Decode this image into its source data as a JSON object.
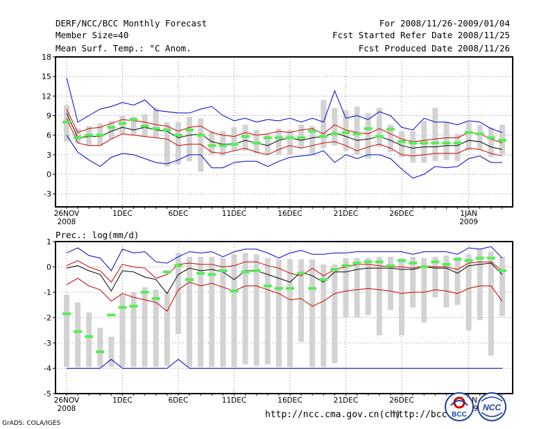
{
  "header": {
    "title": "DERF/NCC/BCC Monthly Forecast",
    "member_size": "Member Size=40",
    "variable": "Mean Surf. Temp.: °C Anom.",
    "period": "For 2008/11/26-2009/01/04",
    "started": "Fcst Started Refer Date 2008/11/25",
    "produced": "Fcst Produced Date 2008/11/26"
  },
  "footer": {
    "url1": "http://ncc.cma.gov.cn(ch)",
    "url2": "http://bcc.",
    "logo1": "BCC",
    "logo2": "NCC",
    "grads": "GrADS: COLA/IGES"
  },
  "colors": {
    "envelope": "#0000cc",
    "spread": "#cc0000",
    "mean": "#000000",
    "box": "#d3d3d3",
    "median": "#55ee55"
  },
  "chart_data": [
    {
      "type": "box-plot with lines",
      "title": "Mean Surf. Temp.: °C Anom.",
      "ylabel": "°C Anom.",
      "ylim": [
        -5,
        18
      ],
      "yticks": [
        -3,
        0,
        3,
        6,
        9,
        12,
        15,
        18
      ],
      "xtick_labels": [
        {
          "day": 0,
          "label": "26NOV",
          "sub": "2008"
        },
        {
          "day": 5,
          "label": "1DEC"
        },
        {
          "day": 10,
          "label": "6DEC"
        },
        {
          "day": 15,
          "label": "11DEC"
        },
        {
          "day": 20,
          "label": "16DEC"
        },
        {
          "day": 25,
          "label": "21DEC"
        },
        {
          "day": 30,
          "label": "26DEC"
        },
        {
          "day": 36,
          "label": "1JAN",
          "sub": "2009"
        }
      ],
      "days": [
        0,
        1,
        2,
        3,
        4,
        5,
        6,
        7,
        8,
        9,
        10,
        11,
        12,
        13,
        14,
        15,
        16,
        17,
        18,
        19,
        20,
        21,
        22,
        23,
        24,
        25,
        26,
        27,
        28,
        29,
        30,
        31,
        32,
        33,
        34,
        35,
        36,
        37,
        38,
        39
      ],
      "series": [
        {
          "name": "max",
          "values": [
            14.8,
            8.0,
            9.0,
            10.0,
            10.4,
            11.0,
            10.6,
            11.4,
            9.8,
            9.6,
            9.4,
            9.4,
            10.0,
            10.4,
            9.0,
            8.2,
            8.6,
            8.0,
            8.4,
            8.2,
            8.6,
            8.0,
            8.6,
            8.0,
            12.8,
            8.6,
            9.0,
            8.4,
            9.6,
            9.0,
            7.2,
            6.8,
            8.6,
            8.0,
            8.0,
            7.6,
            8.2,
            8.0,
            7.0,
            6.4
          ]
        },
        {
          "name": "upper",
          "values": [
            10.0,
            6.4,
            7.0,
            7.2,
            7.8,
            8.4,
            8.2,
            8.0,
            7.6,
            7.4,
            6.6,
            7.2,
            7.4,
            6.4,
            6.0,
            5.8,
            6.4,
            6.0,
            6.2,
            6.6,
            6.4,
            6.8,
            7.0,
            6.2,
            7.6,
            6.8,
            6.4,
            6.2,
            7.0,
            6.2,
            5.4,
            5.0,
            5.2,
            5.4,
            5.6,
            5.6,
            6.4,
            6.2,
            5.4,
            4.8
          ]
        },
        {
          "name": "mean",
          "values": [
            9.4,
            5.6,
            5.8,
            5.8,
            6.6,
            7.2,
            6.8,
            7.2,
            6.8,
            6.6,
            5.6,
            6.0,
            6.2,
            5.0,
            4.6,
            4.6,
            5.2,
            4.8,
            4.4,
            5.2,
            5.6,
            5.2,
            5.6,
            5.8,
            6.4,
            5.8,
            5.2,
            5.4,
            5.8,
            5.2,
            4.4,
            4.0,
            4.2,
            4.2,
            4.4,
            4.4,
            5.2,
            5.0,
            4.2,
            3.8
          ]
        },
        {
          "name": "lower",
          "values": [
            8.6,
            4.8,
            4.4,
            4.4,
            5.4,
            6.2,
            6.0,
            5.8,
            5.6,
            5.4,
            4.4,
            4.6,
            4.6,
            3.4,
            3.2,
            3.6,
            4.0,
            3.4,
            3.0,
            3.8,
            4.4,
            4.0,
            4.4,
            4.8,
            5.0,
            4.4,
            3.6,
            4.2,
            4.6,
            4.0,
            3.0,
            2.8,
            3.0,
            3.2,
            3.2,
            3.2,
            4.0,
            3.8,
            3.2,
            2.8
          ]
        },
        {
          "name": "min",
          "values": [
            6.0,
            3.4,
            2.2,
            1.2,
            2.6,
            3.2,
            3.0,
            2.4,
            1.8,
            1.6,
            2.2,
            3.0,
            3.0,
            1.0,
            1.0,
            1.8,
            2.0,
            2.0,
            1.2,
            2.0,
            2.6,
            2.8,
            3.0,
            3.6,
            1.8,
            3.0,
            2.4,
            3.0,
            3.0,
            2.4,
            0.8,
            -0.6,
            0.0,
            1.2,
            1.0,
            1.2,
            2.4,
            2.8,
            1.8,
            1.8
          ]
        }
      ],
      "box_low": [
        5.0,
        4.8,
        4.4,
        4.4,
        5.4,
        6.2,
        6.0,
        5.8,
        5.6,
        1.2,
        1.5,
        2.0,
        0.4,
        3.0,
        2.8,
        3.6,
        3.6,
        3.2,
        3.0,
        3.0,
        3.0,
        4.0,
        3.0,
        4.0,
        4.4,
        3.6,
        3.0,
        2.4,
        4.2,
        3.4,
        2.6,
        1.8,
        1.8,
        2.0,
        2.2,
        2.0,
        3.6,
        3.8,
        2.6,
        3.0
      ],
      "box_high": [
        10.6,
        7.0,
        7.4,
        7.8,
        8.2,
        9.0,
        8.8,
        9.2,
        10.2,
        8.0,
        8.0,
        8.8,
        8.6,
        6.6,
        6.6,
        7.2,
        7.6,
        6.8,
        6.2,
        7.0,
        6.8,
        7.6,
        7.4,
        11.4,
        10.2,
        9.8,
        10.4,
        9.4,
        10.2,
        7.6,
        6.6,
        6.6,
        8.2,
        10.2,
        8.0,
        6.2,
        8.0,
        7.6,
        7.2,
        7.6
      ],
      "median": [
        8.0,
        5.6,
        6.0,
        6.0,
        7.2,
        7.8,
        8.4,
        7.4,
        7.0,
        6.8,
        6.0,
        6.8,
        6.0,
        4.4,
        4.4,
        4.6,
        5.8,
        4.8,
        5.6,
        5.6,
        5.6,
        5.6,
        6.6,
        5.8,
        6.2,
        6.4,
        6.2,
        7.0,
        5.8,
        6.9,
        5.0,
        4.8,
        4.8,
        4.8,
        4.8,
        4.8,
        6.4,
        6.2,
        5.6,
        5.2
      ]
    },
    {
      "type": "box-plot with lines",
      "title": "Prec.: log(mm/d)",
      "ylabel": "log(mm/d)",
      "ylim": [
        -5,
        1
      ],
      "yticks": [
        -5,
        -4,
        -3,
        -2,
        -1,
        0,
        1
      ],
      "xtick_labels": [
        {
          "day": 0,
          "label": "26NOV",
          "sub": "2008"
        },
        {
          "day": 5,
          "label": "1DEC"
        },
        {
          "day": 10,
          "label": "6DEC"
        },
        {
          "day": 15,
          "label": "11DEC"
        },
        {
          "day": 20,
          "label": "16DEC"
        },
        {
          "day": 25,
          "label": "21DEC"
        },
        {
          "day": 30,
          "label": "26DEC"
        },
        {
          "day": 36,
          "label": "1JAN",
          "sub": "2009"
        }
      ],
      "days": [
        0,
        1,
        2,
        3,
        4,
        5,
        6,
        7,
        8,
        9,
        10,
        11,
        12,
        13,
        14,
        15,
        16,
        17,
        18,
        19,
        20,
        21,
        22,
        23,
        24,
        25,
        26,
        27,
        28,
        29,
        30,
        31,
        32,
        33,
        34,
        35,
        36,
        37,
        38,
        39
      ],
      "series": [
        {
          "name": "max",
          "values": [
            0.55,
            0.75,
            0.45,
            0.35,
            -0.15,
            0.7,
            0.55,
            0.6,
            0.2,
            0.15,
            0.4,
            0.6,
            0.55,
            0.6,
            0.4,
            0.6,
            0.7,
            0.7,
            0.55,
            0.35,
            0.55,
            0.65,
            0.5,
            0.5,
            0.55,
            0.55,
            0.6,
            0.6,
            0.6,
            0.6,
            0.6,
            0.5,
            0.6,
            0.6,
            0.6,
            0.5,
            0.75,
            0.7,
            0.8,
            0.35
          ]
        },
        {
          "name": "upper",
          "values": [
            0.05,
            0.25,
            0.0,
            -0.15,
            -0.6,
            0.1,
            0.0,
            -0.05,
            -0.45,
            -0.3,
            0.1,
            0.15,
            0.1,
            0.1,
            0.0,
            0.05,
            0.2,
            0.2,
            0.05,
            -0.05,
            -0.25,
            -0.35,
            -0.05,
            -0.35,
            -0.1,
            0.0,
            0.1,
            0.1,
            0.05,
            0.0,
            0.0,
            -0.05,
            0.05,
            0.0,
            0.0,
            -0.1,
            0.15,
            0.2,
            0.2,
            -0.15
          ]
        },
        {
          "name": "mean",
          "values": [
            -0.05,
            0.05,
            -0.15,
            -0.3,
            -0.95,
            -0.15,
            -0.2,
            -0.4,
            -0.5,
            -1.05,
            -0.3,
            -0.05,
            -0.15,
            -0.1,
            -0.2,
            -0.5,
            -0.15,
            -0.15,
            -0.3,
            -0.45,
            -0.6,
            -0.2,
            -0.35,
            -0.6,
            -0.2,
            -0.2,
            -0.1,
            -0.05,
            -0.05,
            -0.05,
            -0.1,
            -0.1,
            0.0,
            -0.05,
            -0.05,
            -0.25,
            0.05,
            0.1,
            0.15,
            -0.3
          ]
        },
        {
          "name": "lower",
          "values": [
            -0.7,
            -0.45,
            -0.75,
            -0.9,
            -1.35,
            -1.05,
            -1.2,
            -1.3,
            -1.4,
            -1.75,
            -0.9,
            -0.6,
            -0.75,
            -0.65,
            -0.8,
            -0.95,
            -0.75,
            -0.75,
            -0.9,
            -1.05,
            -1.3,
            -1.25,
            -1.55,
            -1.35,
            -1.05,
            -0.95,
            -0.9,
            -0.85,
            -0.9,
            -0.95,
            -1.05,
            -1.0,
            -1.0,
            -0.9,
            -0.95,
            -1.05,
            -0.85,
            -0.75,
            -0.75,
            -1.35
          ]
        },
        {
          "name": "min",
          "values": [
            -4.0,
            -4.0,
            -4.0,
            -4.0,
            -3.65,
            -4.0,
            -4.0,
            -4.0,
            -4.0,
            -4.0,
            -3.65,
            -4.0,
            -4.0,
            -4.0,
            -4.0,
            -4.0,
            -4.0,
            -4.0,
            -4.0,
            -4.0,
            -4.0,
            -4.0,
            -4.0,
            -4.0,
            -4.0,
            -4.0,
            -4.0,
            -4.0,
            -4.0,
            -4.0,
            -4.0,
            -4.0,
            -4.0,
            -4.0,
            -4.0,
            -4.0,
            -4.0,
            -4.0,
            -4.0,
            -4.0
          ]
        }
      ],
      "box_low": [
        -3.95,
        -3.95,
        -3.95,
        -3.95,
        -3.95,
        -3.95,
        -3.95,
        -3.95,
        -3.95,
        -3.9,
        -2.65,
        -3.95,
        -3.95,
        -3.95,
        -3.95,
        -3.95,
        -3.85,
        -3.9,
        -3.85,
        -3.95,
        -3.95,
        -2.95,
        -3.95,
        -3.95,
        -3.8,
        -2.0,
        -2.0,
        -1.9,
        -2.7,
        -1.7,
        -2.7,
        -1.6,
        -2.2,
        -1.2,
        -1.6,
        -1.5,
        -2.5,
        -2.1,
        -3.5,
        -1.95
      ],
      "box_high": [
        -1.1,
        -1.4,
        -1.8,
        -2.4,
        -2.75,
        -1.1,
        -1.0,
        -0.8,
        -0.9,
        -1.0,
        0.55,
        0.4,
        0.4,
        0.4,
        0.35,
        0.5,
        0.55,
        0.5,
        0.35,
        0.3,
        0.3,
        0.3,
        0.3,
        0.1,
        0.1,
        0.35,
        0.35,
        0.35,
        0.4,
        0.4,
        0.35,
        0.4,
        0.35,
        0.4,
        0.45,
        0.4,
        0.5,
        0.7,
        0.6,
        0.4
      ],
      "median": [
        -1.85,
        -2.55,
        -2.75,
        -3.35,
        -1.9,
        -1.6,
        -1.55,
        -1.0,
        -1.25,
        -0.2,
        0.05,
        -0.5,
        -0.25,
        -0.3,
        -0.15,
        -0.95,
        -0.2,
        -0.15,
        -0.75,
        -0.85,
        -0.85,
        -0.25,
        -0.85,
        -0.5,
        -0.1,
        0.05,
        0.15,
        0.2,
        0.2,
        0.05,
        0.25,
        0.15,
        0.0,
        0.2,
        0.1,
        0.3,
        0.25,
        0.35,
        0.35,
        -0.15
      ]
    }
  ]
}
